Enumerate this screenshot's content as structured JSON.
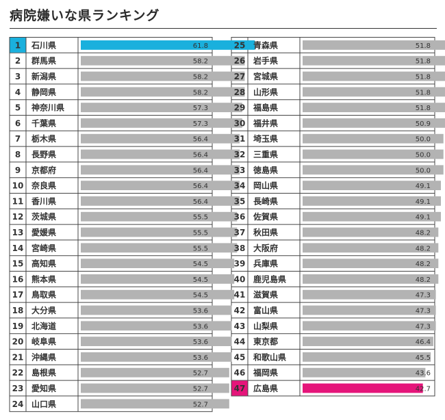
{
  "page": {
    "title": "病院嫌いな県ランキング"
  },
  "colors": {
    "top": "#1ab0dd",
    "bottom": "#e5157a",
    "bar": "#b3b3b3",
    "rank_bg_default": "#ffffff"
  },
  "chart_data": {
    "type": "bar",
    "orientation": "horizontal",
    "title": "病院嫌いな県ランキング",
    "xlim": [
      0,
      70
    ],
    "rows": [
      {
        "rank": "1",
        "name": "石川県",
        "value": 61.8,
        "label": "61.8"
      },
      {
        "rank": "2",
        "name": "群馬県",
        "value": 58.2,
        "label": "58.2"
      },
      {
        "rank": "3",
        "name": "新潟県",
        "value": 58.2,
        "label": "58.2"
      },
      {
        "rank": "4",
        "name": "静岡県",
        "value": 58.2,
        "label": "58.2"
      },
      {
        "rank": "5",
        "name": "神奈川県",
        "value": 57.3,
        "label": "57.3"
      },
      {
        "rank": "6",
        "name": "千葉県",
        "value": 57.3,
        "label": "57.3"
      },
      {
        "rank": "7",
        "name": "栃木県",
        "value": 56.4,
        "label": "56.4"
      },
      {
        "rank": "8",
        "name": "長野県",
        "value": 56.4,
        "label": "56.4"
      },
      {
        "rank": "9",
        "name": "京都府",
        "value": 56.4,
        "label": "56.4"
      },
      {
        "rank": "10",
        "name": "奈良県",
        "value": 56.4,
        "label": "56.4"
      },
      {
        "rank": "11",
        "name": "香川県",
        "value": 56.4,
        "label": "56.4"
      },
      {
        "rank": "12",
        "name": "茨城県",
        "value": 55.5,
        "label": "55.5"
      },
      {
        "rank": "13",
        "name": "愛媛県",
        "value": 55.5,
        "label": "55.5"
      },
      {
        "rank": "14",
        "name": "宮崎県",
        "value": 55.5,
        "label": "55.5"
      },
      {
        "rank": "15",
        "name": "高知県",
        "value": 54.5,
        "label": "54.5"
      },
      {
        "rank": "16",
        "name": "熊本県",
        "value": 54.5,
        "label": "54.5"
      },
      {
        "rank": "17",
        "name": "鳥取県",
        "value": 54.5,
        "label": "54.5"
      },
      {
        "rank": "18",
        "name": "大分県",
        "value": 53.6,
        "label": "53.6"
      },
      {
        "rank": "19",
        "name": "北海道",
        "value": 53.6,
        "label": "53.6"
      },
      {
        "rank": "20",
        "name": "岐阜県",
        "value": 53.6,
        "label": "53.6"
      },
      {
        "rank": "21",
        "name": "沖縄県",
        "value": 53.6,
        "label": "53.6"
      },
      {
        "rank": "22",
        "name": "島根県",
        "value": 52.7,
        "label": "52.7"
      },
      {
        "rank": "23",
        "name": "愛知県",
        "value": 52.7,
        "label": "52.7"
      },
      {
        "rank": "24",
        "name": "山口県",
        "value": 52.7,
        "label": "52.7"
      },
      {
        "rank": "25",
        "name": "青森県",
        "value": 51.8,
        "label": "51.8"
      },
      {
        "rank": "26",
        "name": "岩手県",
        "value": 51.8,
        "label": "51.8"
      },
      {
        "rank": "27",
        "name": "宮城県",
        "value": 51.8,
        "label": "51.8"
      },
      {
        "rank": "28",
        "name": "山形県",
        "value": 51.8,
        "label": "51.8"
      },
      {
        "rank": "29",
        "name": "福島県",
        "value": 51.8,
        "label": "51.8"
      },
      {
        "rank": "30",
        "name": "福井県",
        "value": 50.9,
        "label": "50.9"
      },
      {
        "rank": "31",
        "name": "埼玉県",
        "value": 50.0,
        "label": "50.0"
      },
      {
        "rank": "32",
        "name": "三重県",
        "value": 50.0,
        "label": "50.0"
      },
      {
        "rank": "33",
        "name": "徳島県",
        "value": 50.0,
        "label": "50.0"
      },
      {
        "rank": "34",
        "name": "岡山県",
        "value": 49.1,
        "label": "49.1"
      },
      {
        "rank": "35",
        "name": "長崎県",
        "value": 49.1,
        "label": "49.1"
      },
      {
        "rank": "36",
        "name": "佐賀県",
        "value": 49.1,
        "label": "49.1"
      },
      {
        "rank": "37",
        "name": "秋田県",
        "value": 48.2,
        "label": "48.2"
      },
      {
        "rank": "38",
        "name": "大阪府",
        "value": 48.2,
        "label": "48.2"
      },
      {
        "rank": "39",
        "name": "兵庫県",
        "value": 48.2,
        "label": "48.2"
      },
      {
        "rank": "40",
        "name": "鹿児島県",
        "value": 48.2,
        "label": "48.2"
      },
      {
        "rank": "41",
        "name": "滋賀県",
        "value": 47.3,
        "label": "47.3"
      },
      {
        "rank": "42",
        "name": "富山県",
        "value": 47.3,
        "label": "47.3"
      },
      {
        "rank": "43",
        "name": "山梨県",
        "value": 47.3,
        "label": "47.3"
      },
      {
        "rank": "44",
        "name": "東京都",
        "value": 46.4,
        "label": "46.4"
      },
      {
        "rank": "45",
        "name": "和歌山県",
        "value": 45.5,
        "label": "45.5"
      },
      {
        "rank": "46",
        "name": "福岡県",
        "value": 43.6,
        "label": "43.6"
      },
      {
        "rank": "47",
        "name": "広島県",
        "value": 42.7,
        "label": "42.7"
      }
    ]
  }
}
